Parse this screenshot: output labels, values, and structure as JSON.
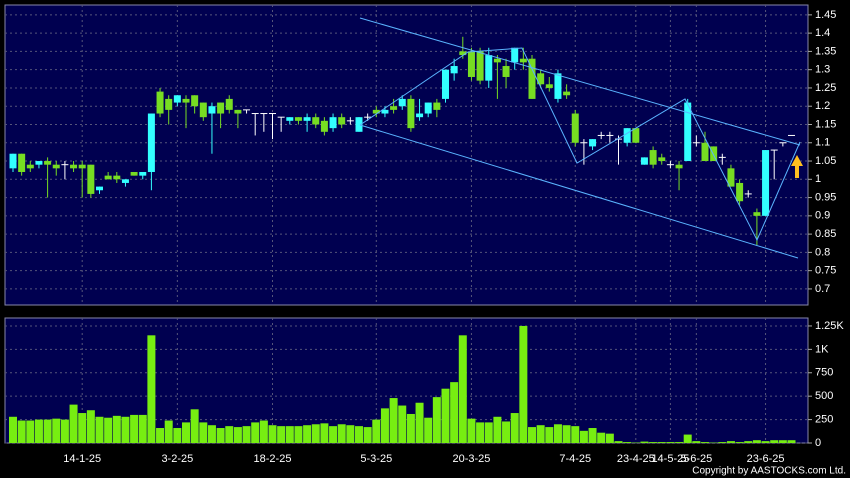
{
  "chart_data": [
    {
      "type": "candlestick",
      "up_color": "#33ffff",
      "down_color": "#77dd22",
      "ylim": [
        0.656,
        1.477
      ],
      "yticks": [
        0.7,
        0.75,
        0.8,
        0.85,
        0.9,
        0.95,
        1,
        1.05,
        1.1,
        1.15,
        1.2,
        1.25,
        1.3,
        1.35,
        1.4,
        1.45
      ],
      "grid": true,
      "open": [
        1.03,
        1.07,
        1.04,
        1.04,
        1.05,
        1.04,
        1.04,
        1.04,
        1.04,
        1.04,
        0.97,
        1.01,
        1.01,
        0.99,
        1.02,
        1.01,
        1.02,
        1.24,
        1.22,
        1.21,
        1.22,
        1.23,
        1.21,
        1.18,
        1.21,
        1.22,
        1.19,
        1.19,
        1.18,
        1.18,
        1.18,
        1.17,
        1.16,
        1.17,
        1.16,
        1.17,
        1.16,
        1.14,
        1.17,
        1.16,
        1.13,
        1.17,
        1.19,
        1.18,
        1.2,
        1.2,
        1.22,
        1.17,
        1.18,
        1.21,
        1.22,
        1.29,
        1.35,
        1.35,
        1.35,
        1.27,
        1.33,
        1.31,
        1.32,
        1.33,
        1.33,
        1.29,
        1.26,
        1.22,
        1.24,
        1.18,
        1.1,
        1.09,
        1.12,
        1.12,
        1.11,
        1.1,
        1.14,
        1.04,
        1.08,
        1.06,
        1.04,
        1.04,
        1.05,
        1.1,
        1.1,
        1.09,
        1.06,
        1.03,
        0.99,
        0.96,
        0.91,
        0.9,
        1.08,
        1.1,
        1.12
      ],
      "high": [
        1.07,
        1.07,
        1.05,
        1.05,
        1.06,
        1.05,
        1.05,
        1.05,
        1.05,
        1.04,
        0.98,
        1.02,
        1.02,
        1.0,
        1.02,
        1.02,
        1.18,
        1.25,
        1.23,
        1.23,
        1.23,
        1.23,
        1.21,
        1.21,
        1.21,
        1.23,
        1.19,
        1.19,
        1.18,
        1.18,
        1.18,
        1.17,
        1.17,
        1.17,
        1.18,
        1.18,
        1.17,
        1.18,
        1.18,
        1.17,
        1.17,
        1.18,
        1.2,
        1.2,
        1.22,
        1.23,
        1.23,
        1.22,
        1.21,
        1.22,
        1.3,
        1.33,
        1.39,
        1.36,
        1.36,
        1.36,
        1.34,
        1.33,
        1.36,
        1.36,
        1.34,
        1.3,
        1.28,
        1.3,
        1.26,
        1.19,
        1.11,
        1.11,
        1.13,
        1.13,
        1.12,
        1.14,
        1.14,
        1.06,
        1.09,
        1.07,
        1.05,
        1.05,
        1.22,
        1.12,
        1.13,
        1.09,
        1.07,
        1.04,
        1.0,
        0.97,
        0.92,
        1.08,
        1.08,
        1.1,
        1.12
      ],
      "low": [
        1.02,
        1.01,
        1.02,
        1.03,
        0.95,
        1.01,
        1.0,
        1.02,
        0.95,
        0.95,
        0.96,
        1.0,
        0.99,
        0.98,
        1.01,
        1.0,
        0.97,
        1.17,
        1.15,
        1.2,
        1.14,
        1.18,
        1.16,
        1.07,
        1.14,
        1.18,
        1.14,
        1.18,
        1.12,
        1.13,
        1.11,
        1.13,
        1.15,
        1.15,
        1.13,
        1.14,
        1.12,
        1.13,
        1.14,
        1.15,
        1.13,
        1.16,
        1.17,
        1.17,
        1.18,
        1.19,
        1.13,
        1.16,
        1.17,
        1.17,
        1.21,
        1.27,
        1.33,
        1.27,
        1.26,
        1.25,
        1.22,
        1.25,
        1.3,
        1.3,
        1.22,
        1.25,
        1.24,
        1.21,
        1.22,
        1.09,
        1.04,
        1.08,
        1.11,
        1.1,
        1.04,
        1.09,
        1.1,
        1.04,
        1.03,
        1.04,
        1.03,
        0.97,
        1.05,
        1.09,
        1.05,
        1.05,
        1.04,
        0.98,
        0.93,
        0.95,
        0.82,
        0.9,
        1.0,
        1.09,
        1.12
      ],
      "close": [
        1.07,
        1.02,
        1.03,
        1.05,
        1.04,
        1.03,
        1.04,
        1.03,
        1.03,
        0.96,
        0.98,
        1.0,
        1.0,
        1.0,
        1.01,
        1.02,
        1.18,
        1.18,
        1.19,
        1.23,
        1.21,
        1.2,
        1.17,
        1.2,
        1.18,
        1.19,
        1.18,
        1.19,
        1.18,
        1.18,
        1.18,
        1.17,
        1.17,
        1.16,
        1.17,
        1.15,
        1.13,
        1.17,
        1.15,
        1.16,
        1.17,
        1.17,
        1.18,
        1.19,
        1.19,
        1.22,
        1.14,
        1.18,
        1.21,
        1.19,
        1.3,
        1.31,
        1.34,
        1.28,
        1.27,
        1.34,
        1.32,
        1.28,
        1.36,
        1.32,
        1.22,
        1.26,
        1.25,
        1.29,
        1.23,
        1.1,
        1.1,
        1.11,
        1.12,
        1.12,
        1.11,
        1.14,
        1.1,
        1.06,
        1.04,
        1.05,
        1.04,
        1.03,
        1.21,
        1.1,
        1.05,
        1.05,
        1.06,
        0.98,
        0.94,
        0.96,
        0.9,
        1.08,
        1.08,
        1.1,
        1.12
      ]
    },
    {
      "type": "bar",
      "color": "#77ee11",
      "ylim": [
        0,
        1335
      ],
      "yticks": [
        0,
        250,
        500,
        750,
        {
          "value": 1000,
          "label": "1K"
        },
        {
          "value": 1250,
          "label": "1.25K"
        }
      ],
      "grid": true,
      "categories": [
        null,
        null,
        null,
        null,
        null,
        null,
        null,
        null,
        "14-1-25",
        null,
        null,
        null,
        null,
        null,
        null,
        null,
        null,
        null,
        null,
        "3-2-25",
        null,
        null,
        null,
        null,
        null,
        null,
        null,
        null,
        null,
        null,
        "18-2-25",
        null,
        null,
        null,
        null,
        null,
        null,
        null,
        null,
        null,
        null,
        null,
        "5-3-25",
        null,
        null,
        null,
        null,
        null,
        null,
        null,
        null,
        null,
        null,
        "20-3-25",
        null,
        null,
        null,
        null,
        null,
        null,
        null,
        null,
        null,
        null,
        null,
        "7-4-25",
        null,
        null,
        null,
        null,
        null,
        null,
        "23-4-25",
        null,
        null,
        null,
        "14-5-25",
        null,
        null,
        "5-6-25",
        null,
        null,
        null,
        null,
        null,
        null,
        null,
        "23-6-25",
        null,
        null,
        null
      ],
      "values": [
        280,
        240,
        240,
        250,
        250,
        260,
        250,
        410,
        320,
        350,
        280,
        270,
        290,
        280,
        300,
        300,
        1150,
        160,
        240,
        160,
        220,
        360,
        220,
        190,
        160,
        180,
        170,
        180,
        220,
        240,
        190,
        180,
        180,
        180,
        190,
        200,
        210,
        180,
        200,
        190,
        180,
        170,
        250,
        370,
        480,
        400,
        310,
        430,
        270,
        490,
        580,
        650,
        1150,
        260,
        220,
        220,
        280,
        230,
        320,
        1250,
        170,
        190,
        170,
        200,
        190,
        180,
        130,
        160,
        110,
        100,
        20,
        10,
        5,
        15,
        10,
        10,
        10,
        10,
        90,
        20,
        10,
        5,
        10,
        20,
        10,
        20,
        30,
        20,
        30,
        30,
        30
      ],
      "copyright": "Copyright by AASTOCKS.com Ltd."
    }
  ]
}
